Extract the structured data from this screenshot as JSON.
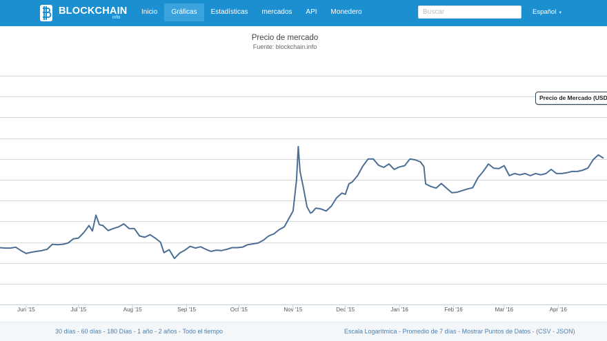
{
  "nav": {
    "brand": "BLOCKCHAIN",
    "brand_sub": "info",
    "links": [
      "Inicio",
      "Gráficas",
      "Estadísticas",
      "mercados",
      "API",
      "Monedero"
    ],
    "active_index": 1,
    "search_placeholder": "Buscar",
    "language": "Español"
  },
  "colors": {
    "nav_bg": "#1c8fd1",
    "nav_active": "#3aa2dd",
    "line": "#4a6d94",
    "link": "#4a7fb2"
  },
  "tooltip": "Precio de Mercado (USD)",
  "footer": {
    "ranges": [
      "30 días",
      "60 días",
      "180 Días",
      "1 año",
      "2 años",
      "Todo el tiempo"
    ],
    "options": [
      "Escala Logarítmica",
      "Promedio de 7 días",
      "Mostrar Puntos de Datos"
    ],
    "exports": [
      "CSV",
      "JSON"
    ]
  },
  "chart_data": {
    "type": "line",
    "title": "Precio de mercado",
    "subtitle": "Fuente: blockchain.info",
    "series_name": "Precio de Mercado (USD)",
    "x_ticks": [
      "Jun '15",
      "Jul '15",
      "Aug '15",
      "Sep '15",
      "Oct '15",
      "Nov '15",
      "Dec '15",
      "Jan '16",
      "Feb '16",
      "Mar '16",
      "Apr '16"
    ],
    "x_range": [
      "2015-05-17",
      "2016-04-27"
    ],
    "y_gridlines": [
      150,
      200,
      250,
      300,
      350,
      400,
      450,
      500,
      550,
      600,
      650
    ],
    "y_range": [
      0,
      680
    ],
    "y_labels_visible": false,
    "grid": true,
    "x": [
      "2015-05-17",
      "2015-05-20",
      "2015-05-23",
      "2015-05-26",
      "2015-05-29",
      "2015-06-01",
      "2015-06-04",
      "2015-06-07",
      "2015-06-10",
      "2015-06-13",
      "2015-06-16",
      "2015-06-19",
      "2015-06-22",
      "2015-06-25",
      "2015-06-28",
      "2015-07-01",
      "2015-07-04",
      "2015-07-07",
      "2015-07-09",
      "2015-07-11",
      "2015-07-13",
      "2015-07-15",
      "2015-07-18",
      "2015-07-21",
      "2015-07-24",
      "2015-07-27",
      "2015-07-30",
      "2015-08-02",
      "2015-08-05",
      "2015-08-08",
      "2015-08-11",
      "2015-08-14",
      "2015-08-17",
      "2015-08-19",
      "2015-08-22",
      "2015-08-25",
      "2015-08-28",
      "2015-08-31",
      "2015-09-03",
      "2015-09-06",
      "2015-09-09",
      "2015-09-12",
      "2015-09-15",
      "2015-09-18",
      "2015-09-21",
      "2015-09-24",
      "2015-09-27",
      "2015-09-30",
      "2015-10-03",
      "2015-10-06",
      "2015-10-09",
      "2015-10-12",
      "2015-10-15",
      "2015-10-18",
      "2015-10-21",
      "2015-10-24",
      "2015-10-27",
      "2015-10-30",
      "2015-11-01",
      "2015-11-03",
      "2015-11-04",
      "2015-11-05",
      "2015-11-07",
      "2015-11-09",
      "2015-11-11",
      "2015-11-12",
      "2015-11-14",
      "2015-11-17",
      "2015-11-20",
      "2015-11-23",
      "2015-11-26",
      "2015-11-29",
      "2015-12-01",
      "2015-12-03",
      "2015-12-05",
      "2015-12-08",
      "2015-12-11",
      "2015-12-14",
      "2015-12-17",
      "2015-12-20",
      "2015-12-23",
      "2015-12-26",
      "2015-12-29",
      "2016-01-01",
      "2016-01-04",
      "2016-01-07",
      "2016-01-10",
      "2016-01-13",
      "2016-01-15",
      "2016-01-16",
      "2016-01-19",
      "2016-01-22",
      "2016-01-25",
      "2016-01-28",
      "2016-01-31",
      "2016-02-03",
      "2016-02-06",
      "2016-02-09",
      "2016-02-12",
      "2016-02-15",
      "2016-02-18",
      "2016-02-21",
      "2016-02-24",
      "2016-02-27",
      "2016-03-01",
      "2016-03-04",
      "2016-03-07",
      "2016-03-10",
      "2016-03-13",
      "2016-03-16",
      "2016-03-19",
      "2016-03-22",
      "2016-03-25",
      "2016-03-28",
      "2016-03-31",
      "2016-04-03",
      "2016-04-06",
      "2016-04-09",
      "2016-04-12",
      "2016-04-15",
      "2016-04-18",
      "2016-04-21",
      "2016-04-24",
      "2016-04-27"
    ],
    "values": [
      237,
      236,
      236,
      238,
      230,
      223,
      226,
      228,
      230,
      233,
      245,
      244,
      245,
      248,
      258,
      260,
      273,
      290,
      277,
      315,
      292,
      290,
      278,
      283,
      287,
      294,
      283,
      283,
      265,
      262,
      268,
      260,
      250,
      225,
      232,
      211,
      224,
      231,
      240,
      236,
      239,
      233,
      228,
      231,
      230,
      233,
      237,
      237,
      238,
      244,
      246,
      248,
      255,
      265,
      270,
      280,
      287,
      310,
      325,
      400,
      480,
      420,
      380,
      335,
      320,
      322,
      332,
      330,
      325,
      337,
      357,
      368,
      365,
      390,
      395,
      410,
      433,
      450,
      450,
      435,
      430,
      438,
      425,
      431,
      434,
      450,
      448,
      443,
      432,
      390,
      384,
      380,
      391,
      380,
      369,
      370,
      374,
      378,
      381,
      405,
      420,
      438,
      428,
      427,
      434,
      410,
      415,
      412,
      415,
      410,
      415,
      412,
      415,
      425,
      415,
      415,
      417,
      420,
      420,
      423,
      428,
      448,
      460,
      452
    ]
  }
}
